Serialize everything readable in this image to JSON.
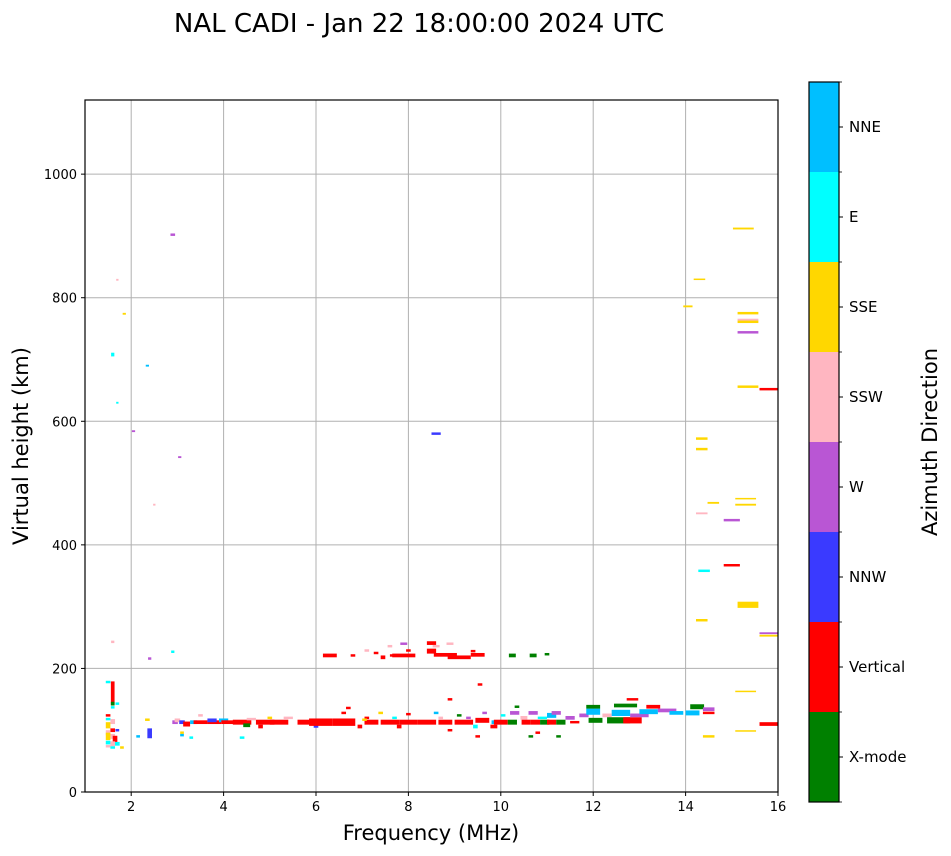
{
  "chart_data": {
    "type": "scatter",
    "title": "NAL CADI - Jan 22 18:00:00 2024 UTC",
    "xlabel": "Frequency (MHz)",
    "ylabel": "Virtual height (km)",
    "xlim": [
      1,
      16
    ],
    "ylim": [
      0,
      1120
    ],
    "xticks": [
      2,
      4,
      6,
      8,
      10,
      12,
      14,
      16
    ],
    "yticks": [
      0,
      200,
      400,
      600,
      800,
      1000
    ],
    "grid": true,
    "colorbar": {
      "label": "Azimuth Direction",
      "placement": "right",
      "categories": [
        {
          "name": "X-mode",
          "color": "#008000"
        },
        {
          "name": "Vertical",
          "color": "#ff0000"
        },
        {
          "name": "NNW",
          "color": "#3a3aff"
        },
        {
          "name": "W",
          "color": "#b956d4"
        },
        {
          "name": "SSW",
          "color": "#ffb6c1"
        },
        {
          "name": "SSE",
          "color": "#ffd700"
        },
        {
          "name": "E",
          "color": "#00ffff"
        },
        {
          "name": "NNE",
          "color": "#00bfff"
        }
      ]
    },
    "point_fields": [
      "freq_mhz",
      "height_km",
      "direction_index",
      "freq_span_mhz",
      "height_span_km"
    ],
    "points": [
      [
        2.9,
        902,
        3,
        0.1,
        4
      ],
      [
        1.7,
        829,
        4,
        0.05,
        3
      ],
      [
        1.85,
        774,
        5,
        0.07,
        3
      ],
      [
        1.6,
        708,
        6,
        0.07,
        6
      ],
      [
        2.35,
        690,
        7,
        0.07,
        3
      ],
      [
        1.7,
        630,
        6,
        0.05,
        3
      ],
      [
        2.05,
        584,
        3,
        0.07,
        3
      ],
      [
        3.05,
        542,
        3,
        0.07,
        3
      ],
      [
        2.5,
        465,
        4,
        0.05,
        3
      ],
      [
        1.6,
        243,
        4,
        0.07,
        4
      ],
      [
        2.9,
        227,
        6,
        0.07,
        4
      ],
      [
        2.4,
        216,
        3,
        0.07,
        4
      ],
      [
        8.6,
        580,
        2,
        0.2,
        4
      ],
      [
        1.5,
        178,
        6,
        0.1,
        4
      ],
      [
        1.6,
        160,
        1,
        0.08,
        38
      ],
      [
        1.6,
        143,
        0,
        0.08,
        6
      ],
      [
        1.6,
        137,
        6,
        0.08,
        4
      ],
      [
        1.7,
        143,
        6,
        0.08,
        4
      ],
      [
        1.5,
        124,
        1,
        0.1,
        4
      ],
      [
        1.5,
        118,
        6,
        0.1,
        4
      ],
      [
        1.5,
        108,
        5,
        0.1,
        10
      ],
      [
        1.6,
        114,
        4,
        0.1,
        8
      ],
      [
        1.6,
        100,
        1,
        0.1,
        6
      ],
      [
        1.7,
        100,
        2,
        0.08,
        4
      ],
      [
        1.5,
        96,
        4,
        0.1,
        8
      ],
      [
        1.6,
        90,
        4,
        0.1,
        8
      ],
      [
        1.5,
        90,
        5,
        0.1,
        12
      ],
      [
        1.65,
        86,
        1,
        0.1,
        10
      ],
      [
        1.5,
        80,
        6,
        0.1,
        6
      ],
      [
        1.6,
        78,
        4,
        0.1,
        8
      ],
      [
        1.7,
        78,
        6,
        0.1,
        6
      ],
      [
        1.5,
        74,
        4,
        0.1,
        4
      ],
      [
        1.6,
        72,
        6,
        0.1,
        4
      ],
      [
        1.8,
        72,
        5,
        0.08,
        4
      ],
      [
        2.15,
        90,
        7,
        0.08,
        4
      ],
      [
        2.4,
        95,
        2,
        0.1,
        16
      ],
      [
        2.35,
        117,
        5,
        0.1,
        4
      ],
      [
        2.95,
        113,
        3,
        0.12,
        6
      ],
      [
        3.0,
        116,
        4,
        0.12,
        6
      ],
      [
        3.1,
        113,
        2,
        0.12,
        6
      ],
      [
        3.2,
        110,
        1,
        0.15,
        8
      ],
      [
        3.35,
        113,
        7,
        0.15,
        6
      ],
      [
        3.5,
        113,
        1,
        0.3,
        6
      ],
      [
        3.8,
        113,
        1,
        0.3,
        6
      ],
      [
        3.1,
        96,
        5,
        0.08,
        4
      ],
      [
        3.1,
        92,
        7,
        0.08,
        4
      ],
      [
        3.3,
        88,
        6,
        0.08,
        4
      ],
      [
        3.5,
        124,
        4,
        0.1,
        4
      ],
      [
        3.75,
        116,
        2,
        0.2,
        6
      ],
      [
        4.0,
        116,
        7,
        0.2,
        6
      ],
      [
        4.1,
        113,
        1,
        0.3,
        6
      ],
      [
        4.4,
        113,
        1,
        0.4,
        8
      ],
      [
        4.6,
        118,
        4,
        0.2,
        4
      ],
      [
        4.9,
        113,
        1,
        0.4,
        8
      ],
      [
        5.0,
        120,
        5,
        0.1,
        4
      ],
      [
        5.2,
        113,
        1,
        0.4,
        8
      ],
      [
        5.4,
        120,
        4,
        0.2,
        4
      ],
      [
        4.4,
        88,
        6,
        0.1,
        4
      ],
      [
        4.5,
        108,
        0,
        0.15,
        6
      ],
      [
        4.8,
        106,
        1,
        0.1,
        6
      ],
      [
        5.8,
        113,
        1,
        0.4,
        8
      ],
      [
        6.0,
        108,
        2,
        0.1,
        8
      ],
      [
        6.1,
        113,
        1,
        0.5,
        12
      ],
      [
        6.6,
        113,
        1,
        0.5,
        12
      ],
      [
        6.7,
        136,
        1,
        0.1,
        4
      ],
      [
        6.6,
        128,
        1,
        0.1,
        4
      ],
      [
        6.95,
        106,
        1,
        0.1,
        6
      ],
      [
        7.1,
        120,
        1,
        0.1,
        4
      ],
      [
        7.2,
        113,
        1,
        0.3,
        8
      ],
      [
        7.05,
        117,
        5,
        0.1,
        4
      ],
      [
        7.4,
        128,
        5,
        0.1,
        4
      ],
      [
        7.6,
        113,
        1,
        0.4,
        8
      ],
      [
        7.7,
        120,
        6,
        0.1,
        4
      ],
      [
        7.8,
        106,
        1,
        0.1,
        6
      ],
      [
        8.0,
        113,
        1,
        0.4,
        8
      ],
      [
        8.0,
        126,
        1,
        0.1,
        4
      ],
      [
        8.4,
        113,
        1,
        0.4,
        8
      ],
      [
        8.6,
        128,
        7,
        0.1,
        4
      ],
      [
        8.7,
        120,
        4,
        0.1,
        4
      ],
      [
        8.8,
        113,
        1,
        0.3,
        8
      ],
      [
        8.9,
        100,
        1,
        0.1,
        4
      ],
      [
        8.9,
        150,
        1,
        0.1,
        4
      ],
      [
        9.1,
        124,
        0,
        0.1,
        4
      ],
      [
        9.2,
        113,
        1,
        0.4,
        8
      ],
      [
        9.3,
        120,
        3,
        0.1,
        4
      ],
      [
        9.45,
        106,
        6,
        0.1,
        6
      ],
      [
        9.55,
        174,
        1,
        0.1,
        4
      ],
      [
        9.5,
        90,
        1,
        0.1,
        4
      ],
      [
        9.6,
        116,
        1,
        0.3,
        8
      ],
      [
        9.65,
        128,
        3,
        0.1,
        4
      ],
      [
        9.85,
        113,
        7,
        0.1,
        6
      ],
      [
        9.85,
        106,
        1,
        0.15,
        6
      ],
      [
        10.0,
        113,
        1,
        0.3,
        8
      ],
      [
        10.05,
        124,
        6,
        0.1,
        4
      ],
      [
        10.25,
        113,
        0,
        0.2,
        8
      ],
      [
        10.3,
        128,
        3,
        0.2,
        6
      ],
      [
        10.35,
        138,
        0,
        0.1,
        4
      ],
      [
        10.5,
        120,
        4,
        0.15,
        6
      ],
      [
        10.55,
        113,
        1,
        0.2,
        8
      ],
      [
        10.65,
        90,
        0,
        0.1,
        4
      ],
      [
        10.7,
        128,
        3,
        0.2,
        6
      ],
      [
        10.75,
        113,
        1,
        0.2,
        8
      ],
      [
        10.9,
        120,
        6,
        0.2,
        4
      ],
      [
        10.95,
        113,
        0,
        0.2,
        8
      ],
      [
        10.8,
        96,
        1,
        0.1,
        4
      ],
      [
        11.1,
        124,
        7,
        0.2,
        8
      ],
      [
        11.1,
        113,
        1,
        0.2,
        8
      ],
      [
        11.2,
        128,
        3,
        0.2,
        6
      ],
      [
        11.3,
        113,
        0,
        0.2,
        8
      ],
      [
        11.25,
        90,
        0,
        0.1,
        4
      ],
      [
        11.5,
        120,
        3,
        0.2,
        6
      ],
      [
        11.6,
        113,
        1,
        0.2,
        4
      ],
      [
        11.8,
        124,
        3,
        0.2,
        6
      ],
      [
        12.05,
        116,
        0,
        0.3,
        8
      ],
      [
        12.0,
        130,
        7,
        0.3,
        10
      ],
      [
        12.0,
        138,
        0,
        0.3,
        6
      ],
      [
        12.3,
        124,
        4,
        0.2,
        6
      ],
      [
        12.55,
        116,
        0,
        0.5,
        10
      ],
      [
        12.6,
        128,
        7,
        0.4,
        10
      ],
      [
        12.7,
        140,
        0,
        0.5,
        6
      ],
      [
        12.85,
        116,
        1,
        0.4,
        10
      ],
      [
        12.85,
        150,
        1,
        0.25,
        4
      ],
      [
        13.0,
        124,
        3,
        0.4,
        6
      ],
      [
        13.2,
        130,
        7,
        0.4,
        8
      ],
      [
        13.3,
        138,
        1,
        0.3,
        6
      ],
      [
        13.6,
        132,
        3,
        0.4,
        6
      ],
      [
        13.8,
        128,
        7,
        0.3,
        6
      ],
      [
        14.15,
        128,
        7,
        0.3,
        8
      ],
      [
        14.25,
        138,
        0,
        0.3,
        8
      ],
      [
        14.5,
        134,
        3,
        0.25,
        6
      ],
      [
        14.5,
        128,
        1,
        0.25,
        4
      ],
      [
        14.5,
        90,
        5,
        0.25,
        4
      ],
      [
        8.5,
        241,
        1,
        0.2,
        6
      ],
      [
        8.5,
        228,
        1,
        0.2,
        8
      ],
      [
        8.8,
        222,
        1,
        0.5,
        6
      ],
      [
        9.1,
        218,
        1,
        0.5,
        6
      ],
      [
        9.5,
        222,
        1,
        0.3,
        6
      ],
      [
        8.6,
        236,
        4,
        0.15,
        4
      ],
      [
        8.9,
        240,
        4,
        0.15,
        4
      ],
      [
        9.4,
        228,
        1,
        0.1,
        4
      ],
      [
        10.25,
        221,
        0,
        0.15,
        6
      ],
      [
        10.7,
        221,
        0,
        0.15,
        6
      ],
      [
        11.0,
        223,
        0,
        0.1,
        4
      ],
      [
        6.3,
        221,
        1,
        0.3,
        6
      ],
      [
        6.8,
        221,
        1,
        0.1,
        4
      ],
      [
        7.1,
        229,
        4,
        0.1,
        4
      ],
      [
        7.3,
        225,
        1,
        0.1,
        4
      ],
      [
        7.45,
        218,
        1,
        0.1,
        6
      ],
      [
        7.65,
        221,
        1,
        0.1,
        4
      ],
      [
        7.9,
        221,
        1,
        0.5,
        6
      ],
      [
        8.0,
        229,
        1,
        0.1,
        4
      ],
      [
        7.6,
        236,
        4,
        0.1,
        4
      ],
      [
        7.9,
        240,
        3,
        0.15,
        4
      ],
      [
        15.25,
        912,
        5,
        0.45,
        3
      ],
      [
        14.3,
        830,
        5,
        0.25,
        2
      ],
      [
        14.05,
        786,
        5,
        0.2,
        3
      ],
      [
        15.35,
        775,
        5,
        0.45,
        4
      ],
      [
        15.35,
        764,
        4,
        0.45,
        4
      ],
      [
        15.35,
        761,
        5,
        0.45,
        4
      ],
      [
        15.35,
        744,
        3,
        0.45,
        4
      ],
      [
        15.35,
        656,
        5,
        0.45,
        4
      ],
      [
        15.8,
        652,
        1,
        0.4,
        4
      ],
      [
        14.35,
        572,
        5,
        0.25,
        4
      ],
      [
        14.35,
        555,
        5,
        0.25,
        4
      ],
      [
        14.6,
        468,
        5,
        0.25,
        3
      ],
      [
        15.3,
        475,
        5,
        0.45,
        2
      ],
      [
        15.3,
        465,
        5,
        0.45,
        3
      ],
      [
        14.35,
        451,
        4,
        0.25,
        3
      ],
      [
        15.0,
        440,
        3,
        0.35,
        4
      ],
      [
        15.0,
        367,
        1,
        0.35,
        4
      ],
      [
        14.4,
        358,
        6,
        0.25,
        4
      ],
      [
        15.35,
        303,
        5,
        0.45,
        10
      ],
      [
        14.35,
        278,
        5,
        0.25,
        4
      ],
      [
        15.8,
        257,
        3,
        0.4,
        3
      ],
      [
        15.8,
        253,
        5,
        0.4,
        3
      ],
      [
        15.3,
        163,
        5,
        0.45,
        2
      ],
      [
        15.3,
        99,
        5,
        0.45,
        2
      ],
      [
        15.8,
        110,
        1,
        0.4,
        6
      ]
    ]
  }
}
